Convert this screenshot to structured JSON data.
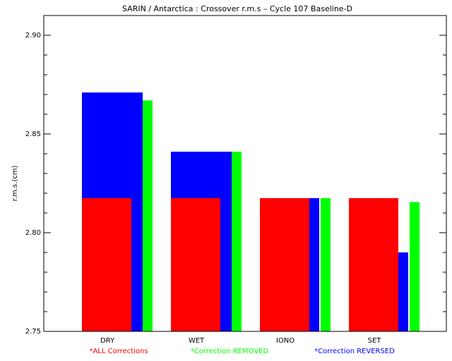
{
  "chart_data": {
    "type": "bar",
    "title": "SARIN / Antarctica : Crossover r.m.s – Cycle 107 Baseline-D",
    "xlabel": "",
    "ylabel": "r.m.s.(cm)",
    "ylim": [
      2.75,
      2.91
    ],
    "yticks": [
      2.75,
      2.8,
      2.85,
      2.9
    ],
    "ytick_labels": [
      "2.75",
      "2.80",
      "2.85",
      "2.90"
    ],
    "categories": [
      "DRY",
      "WET",
      "IONO",
      "SET"
    ],
    "series": [
      {
        "name": "*ALL Corrections",
        "color": "#ff0000",
        "values": [
          2.8175,
          2.8175,
          2.8175,
          2.8175
        ]
      },
      {
        "name": "*Correction REMOVED",
        "color": "#00ff00",
        "values": [
          2.867,
          2.841,
          2.8175,
          2.8155
        ]
      },
      {
        "name": "*Correction REVERSED",
        "color": "#0000ff",
        "values": [
          2.871,
          2.841,
          2.8175,
          2.79
        ]
      }
    ],
    "grid": false,
    "legend_placement": "bottom"
  }
}
